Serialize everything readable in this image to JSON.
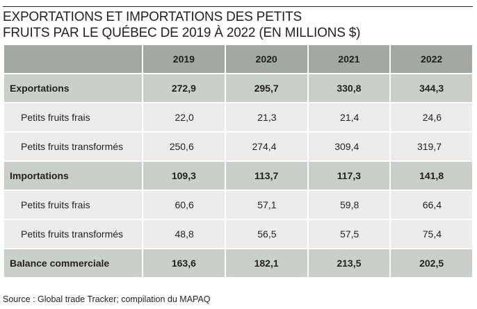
{
  "title_line1": "EXPORTATIONS ET IMPORTATIONS DES PETITS",
  "title_line2": "FRUITS PAR LE QUÉBEC DE 2019 À 2022 (EN MILLIONS $)",
  "source": "Source : Global trade Tracker; compilation du MAPAQ",
  "chart_data": {
    "type": "table",
    "columns": [
      "2019",
      "2020",
      "2021",
      "2022"
    ],
    "rows": [
      {
        "label": "Exportations",
        "level": "main",
        "values": [
          "272,9",
          "295,7",
          "330,8",
          "344,3"
        ]
      },
      {
        "label": "Petits fruits frais",
        "level": "sub",
        "values": [
          "22,0",
          "21,3",
          "21,4",
          "24,6"
        ]
      },
      {
        "label": "Petits fruits transformés",
        "level": "sub",
        "values": [
          "250,6",
          "274,4",
          "309,4",
          "319,7"
        ]
      },
      {
        "label": "Importations",
        "level": "main",
        "values": [
          "109,3",
          "113,7",
          "117,3",
          "141,8"
        ]
      },
      {
        "label": "Petits fruits frais",
        "level": "sub",
        "values": [
          "60,6",
          "57,1",
          "59,8",
          "66,4"
        ]
      },
      {
        "label": "Petits fruits transformés",
        "level": "sub",
        "values": [
          "48,8",
          "56,5",
          "57,5",
          "75,4"
        ]
      },
      {
        "label": "Balance commerciale",
        "level": "main",
        "values": [
          "163,6",
          "182,1",
          "213,5",
          "202,5"
        ]
      }
    ]
  },
  "colors": {
    "header": "#a0a9a2",
    "main_row": "#c9cfc9",
    "sub_row": "#ebeceb"
  }
}
